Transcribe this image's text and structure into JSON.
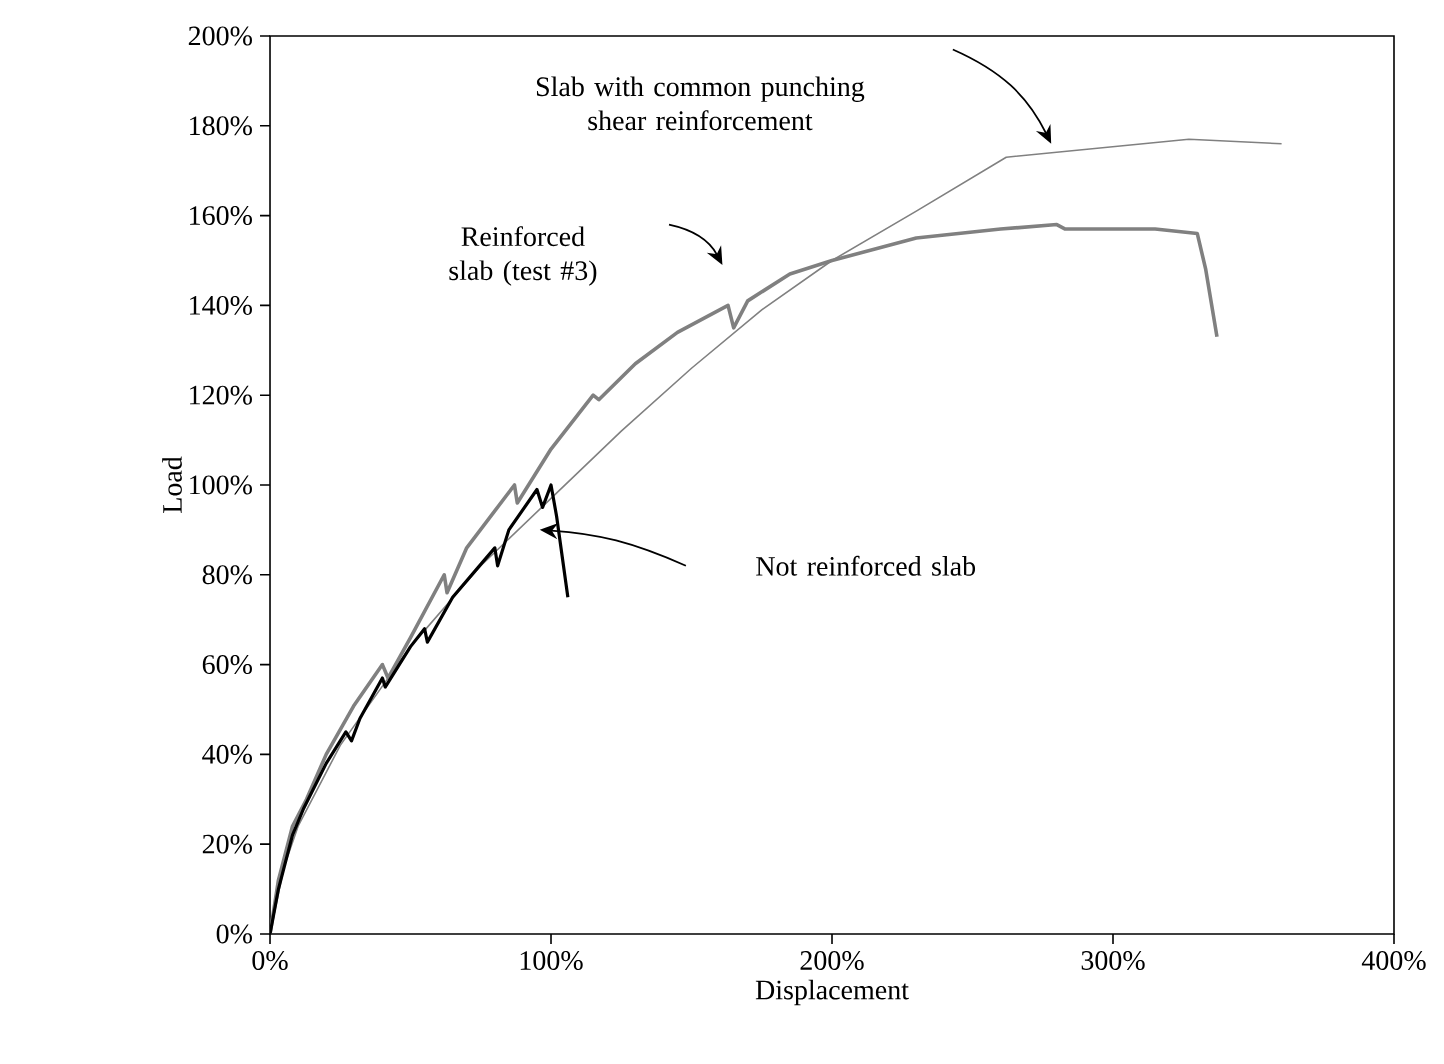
{
  "chart_data": {
    "type": "line",
    "xlabel": "Displacement",
    "ylabel": "Load",
    "xlim": [
      0,
      400
    ],
    "ylim": [
      0,
      200
    ],
    "xticks": [
      {
        "value": 0,
        "label": "0%"
      },
      {
        "value": 100,
        "label": "100%"
      },
      {
        "value": 200,
        "label": "200%"
      },
      {
        "value": 300,
        "label": "300%"
      },
      {
        "value": 400,
        "label": "400%"
      }
    ],
    "yticks": [
      {
        "value": 0,
        "label": "0%"
      },
      {
        "value": 20,
        "label": "20%"
      },
      {
        "value": 40,
        "label": "40%"
      },
      {
        "value": 60,
        "label": "60%"
      },
      {
        "value": 80,
        "label": "80%"
      },
      {
        "value": 100,
        "label": "100%"
      },
      {
        "value": 120,
        "label": "120%"
      },
      {
        "value": 140,
        "label": "140%"
      },
      {
        "value": 160,
        "label": "160%"
      },
      {
        "value": 180,
        "label": "180%"
      },
      {
        "value": 200,
        "label": "200%"
      }
    ],
    "grid": false,
    "marker": "none",
    "line_style": "solid",
    "series": [
      {
        "color": "#808080",
        "x": [
          0,
          5,
          10,
          25,
          50,
          75,
          100,
          125,
          150,
          175,
          200,
          230,
          262,
          327,
          360
        ],
        "values": [
          0,
          15,
          24,
          42,
          64,
          82,
          97,
          112,
          126,
          139,
          150,
          161,
          173,
          177,
          176
        ]
      },
      {
        "color": "#808080",
        "x": [
          0,
          3,
          8,
          13,
          20,
          30,
          40,
          42,
          50,
          62,
          63,
          70,
          87,
          88,
          100,
          115,
          117,
          130,
          145,
          163,
          165,
          170,
          185,
          200,
          230,
          260,
          280,
          283,
          315,
          330,
          333,
          337
        ],
        "values": [
          0,
          12,
          24,
          30,
          40,
          51,
          60,
          57,
          66,
          80,
          76,
          86,
          100,
          96,
          108,
          120,
          119,
          127,
          134,
          140,
          135,
          141,
          147,
          150,
          155,
          157,
          158,
          157,
          157,
          156,
          148,
          133
        ]
      },
      {
        "color": "#000000",
        "x": [
          0,
          3,
          8,
          12,
          20,
          27,
          29,
          32,
          40,
          41,
          50,
          55,
          56,
          65,
          80,
          81,
          85,
          95,
          97,
          100,
          102,
          106
        ],
        "values": [
          0,
          10,
          22,
          28,
          38,
          45,
          43,
          48,
          57,
          55,
          64,
          68,
          65,
          75,
          86,
          82,
          90,
          99,
          95,
          100,
          93,
          75
        ]
      }
    ],
    "annotations": [
      "Slab with common punching shear reinforcement",
      "Reinforced slab (test #3)",
      "Not reinforced slab"
    ]
  }
}
